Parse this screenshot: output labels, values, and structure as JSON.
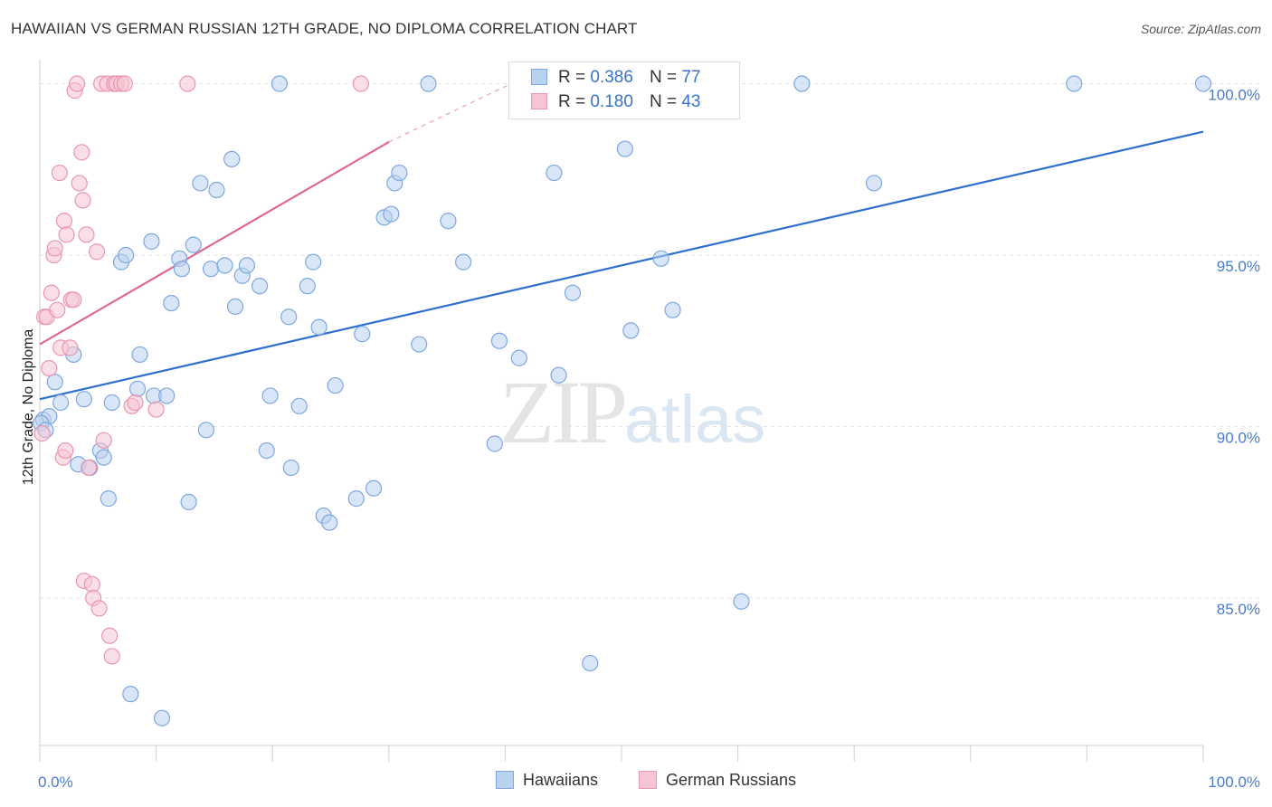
{
  "title": "HAWAIIAN VS GERMAN RUSSIAN 12TH GRADE, NO DIPLOMA CORRELATION CHART",
  "source": "Source: ZipAtlas.com",
  "watermark": {
    "zip": "ZIP",
    "atlas": "atlas"
  },
  "legend": {
    "r_label": "R =",
    "n_label": "N =",
    "rows": [
      {
        "r": "0.386",
        "n": "77"
      },
      {
        "r": "0.180",
        "n": "43"
      }
    ]
  },
  "colors": {
    "blue_fill": "#b9d2f0",
    "blue_stroke": "#7ea8dd",
    "blue_line": "#2c6fcd",
    "pink_fill": "#f7c4d3",
    "pink_stroke": "#e996b1",
    "pink_line": "#e0688f",
    "grid": "#e3e3e3",
    "axis_text": "#4a7cc9"
  },
  "chart_data": {
    "type": "scatter",
    "title": "HAWAIIAN VS GERMAN RUSSIAN 12TH GRADE, NO DIPLOMA CORRELATION CHART",
    "xlabel": "",
    "ylabel": "12th Grade, No Diploma",
    "xlim": [
      0,
      100
    ],
    "ylim": [
      80.7,
      100.7
    ],
    "x_tick_labels": [
      "0.0%",
      "100.0%"
    ],
    "y_ticks": [
      85,
      90,
      95,
      100
    ],
    "y_tick_labels": [
      "85.0%",
      "90.0%",
      "95.0%",
      "100.0%"
    ],
    "legend_position": "bottom-center",
    "series": [
      {
        "name": "Hawaiians",
        "color": "#7ea8dd",
        "trend": {
          "x0": 0,
          "y0": 90.8,
          "x1": 100,
          "y1": 98.6
        },
        "points": [
          [
            0.3,
            90.2
          ],
          [
            0.8,
            90.3
          ],
          [
            1.3,
            91.3
          ],
          [
            1.8,
            90.7
          ],
          [
            2.9,
            92.1
          ],
          [
            3.3,
            88.9
          ],
          [
            3.8,
            90.8
          ],
          [
            4.3,
            88.8
          ],
          [
            5.2,
            89.3
          ],
          [
            5.5,
            89.1
          ],
          [
            5.9,
            87.9
          ],
          [
            6.2,
            90.7
          ],
          [
            7.0,
            94.8
          ],
          [
            7.4,
            95.0
          ],
          [
            7.8,
            82.2
          ],
          [
            8.4,
            91.1
          ],
          [
            8.6,
            92.1
          ],
          [
            9.6,
            95.4
          ],
          [
            9.8,
            90.9
          ],
          [
            10.5,
            81.5
          ],
          [
            10.9,
            90.9
          ],
          [
            11.3,
            93.6
          ],
          [
            12.0,
            94.9
          ],
          [
            12.2,
            94.6
          ],
          [
            12.8,
            87.8
          ],
          [
            13.2,
            95.3
          ],
          [
            13.8,
            97.1
          ],
          [
            14.3,
            89.9
          ],
          [
            14.7,
            94.6
          ],
          [
            15.2,
            96.9
          ],
          [
            15.9,
            94.7
          ],
          [
            16.5,
            97.8
          ],
          [
            16.8,
            93.5
          ],
          [
            17.4,
            94.4
          ],
          [
            17.8,
            94.7
          ],
          [
            18.9,
            94.1
          ],
          [
            19.5,
            89.3
          ],
          [
            19.8,
            90.9
          ],
          [
            20.6,
            100.0
          ],
          [
            21.4,
            93.2
          ],
          [
            21.6,
            88.8
          ],
          [
            22.3,
            90.6
          ],
          [
            23.0,
            94.1
          ],
          [
            23.5,
            94.8
          ],
          [
            24.0,
            92.9
          ],
          [
            24.4,
            87.4
          ],
          [
            24.9,
            87.2
          ],
          [
            25.4,
            91.2
          ],
          [
            27.2,
            87.9
          ],
          [
            27.7,
            92.7
          ],
          [
            28.7,
            88.2
          ],
          [
            29.6,
            96.1
          ],
          [
            30.2,
            96.2
          ],
          [
            30.5,
            97.1
          ],
          [
            30.9,
            97.4
          ],
          [
            32.6,
            92.4
          ],
          [
            33.4,
            100.0
          ],
          [
            35.1,
            96.0
          ],
          [
            36.4,
            94.8
          ],
          [
            39.1,
            89.5
          ],
          [
            39.5,
            92.5
          ],
          [
            41.2,
            92.0
          ],
          [
            44.2,
            97.4
          ],
          [
            44.6,
            91.5
          ],
          [
            45.8,
            93.9
          ],
          [
            47.3,
            83.1
          ],
          [
            50.3,
            98.1
          ],
          [
            50.8,
            92.8
          ],
          [
            53.4,
            94.9
          ],
          [
            54.4,
            93.4
          ],
          [
            60.3,
            84.9
          ],
          [
            65.5,
            100.0
          ],
          [
            71.7,
            97.1
          ],
          [
            88.9,
            100.0
          ],
          [
            100.0,
            100.0
          ],
          [
            0.1,
            90.1
          ],
          [
            0.5,
            89.9
          ]
        ]
      },
      {
        "name": "German Russians",
        "color": "#e996b1",
        "trend": {
          "x0": 0,
          "y0": 92.4,
          "x1": 30,
          "y1": 98.3,
          "dash_x1": 40.5,
          "dash_y1": 100.0
        },
        "points": [
          [
            0.2,
            89.8
          ],
          [
            0.4,
            93.2
          ],
          [
            0.6,
            93.2
          ],
          [
            0.8,
            91.7
          ],
          [
            1.0,
            93.9
          ],
          [
            1.2,
            95.0
          ],
          [
            1.3,
            95.2
          ],
          [
            1.5,
            93.4
          ],
          [
            1.7,
            97.4
          ],
          [
            1.8,
            92.3
          ],
          [
            2.0,
            89.1
          ],
          [
            2.1,
            96.0
          ],
          [
            2.2,
            89.3
          ],
          [
            2.3,
            95.6
          ],
          [
            2.6,
            92.3
          ],
          [
            2.7,
            93.7
          ],
          [
            2.9,
            93.7
          ],
          [
            3.0,
            99.8
          ],
          [
            3.2,
            100.0
          ],
          [
            3.4,
            97.1
          ],
          [
            3.6,
            98.0
          ],
          [
            3.7,
            96.6
          ],
          [
            3.8,
            85.5
          ],
          [
            4.0,
            95.6
          ],
          [
            4.2,
            88.8
          ],
          [
            4.5,
            85.4
          ],
          [
            4.6,
            85.0
          ],
          [
            4.9,
            95.1
          ],
          [
            5.1,
            84.7
          ],
          [
            5.3,
            100.0
          ],
          [
            5.5,
            89.6
          ],
          [
            5.8,
            100.0
          ],
          [
            6.0,
            83.9
          ],
          [
            6.2,
            83.3
          ],
          [
            6.4,
            100.0
          ],
          [
            6.6,
            100.0
          ],
          [
            7.0,
            100.0
          ],
          [
            7.3,
            100.0
          ],
          [
            7.9,
            90.6
          ],
          [
            8.2,
            90.7
          ],
          [
            10.0,
            90.5
          ],
          [
            12.7,
            100.0
          ],
          [
            27.6,
            100.0
          ]
        ]
      }
    ]
  },
  "bottom_legend": [
    {
      "label": "Hawaiians"
    },
    {
      "label": "German Russians"
    }
  ]
}
